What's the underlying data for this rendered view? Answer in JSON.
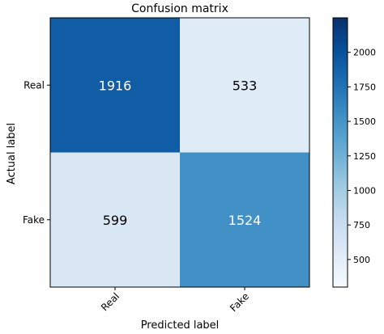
{
  "chart_data": {
    "type": "heatmap",
    "title": "Confusion matrix",
    "xlabel": "Predicted label",
    "ylabel": "Actual label",
    "x_categories": [
      "Real",
      "Fake"
    ],
    "y_categories": [
      "Real",
      "Fake"
    ],
    "values": [
      [
        1916,
        533
      ],
      [
        599,
        1524
      ]
    ],
    "colormap": "Blues",
    "color_range": [
      300,
      2250
    ],
    "colorbar_ticks": [
      500,
      750,
      1000,
      1250,
      1500,
      1750,
      2000
    ],
    "text_colors": {
      "dark_cell": "#ffffff",
      "light_cell": "#000000"
    }
  }
}
